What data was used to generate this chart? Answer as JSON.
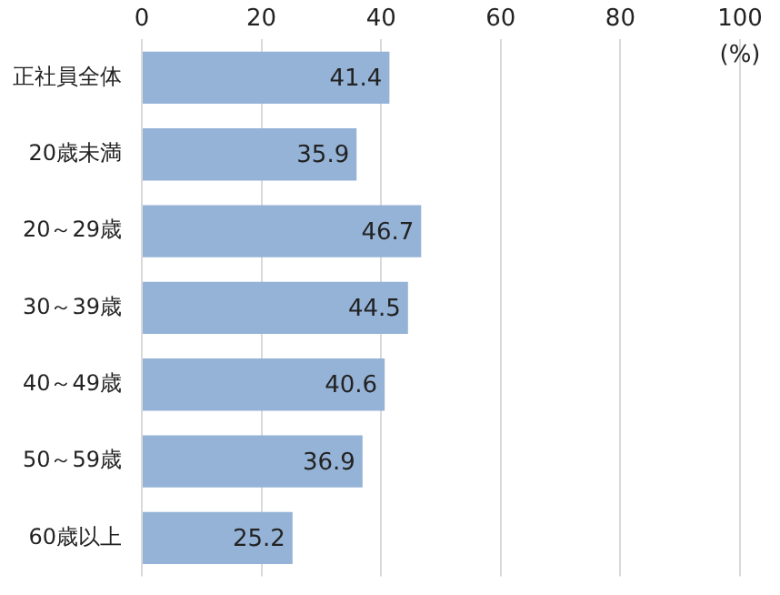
{
  "chart_data": {
    "type": "bar",
    "orientation": "horizontal",
    "xlabel": "(%)",
    "categories": [
      "正社員全体",
      "20歳未満",
      "20～29歳",
      "30～39歳",
      "40～49歳",
      "50～59歳",
      "60歳以上"
    ],
    "values": [
      41.4,
      35.9,
      46.7,
      44.5,
      40.6,
      36.9,
      25.2
    ],
    "color": "#95b3d7",
    "xlim": [
      0,
      100
    ],
    "xticks": [
      0,
      20,
      40,
      60,
      80,
      100
    ],
    "grid": "x",
    "data_labels": true,
    "legend": false
  }
}
